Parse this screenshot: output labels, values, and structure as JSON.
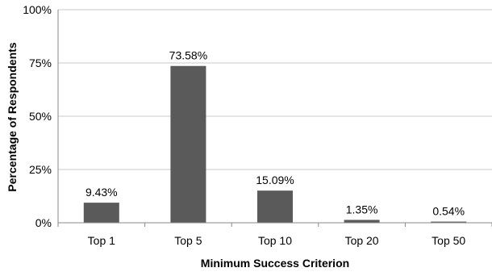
{
  "chart_data": {
    "type": "bar",
    "categories": [
      "Top 1",
      "Top 5",
      "Top 10",
      "Top 20",
      "Top 50"
    ],
    "values": [
      9.43,
      73.58,
      15.09,
      1.35,
      0.54
    ],
    "data_labels": [
      "9.43%",
      "73.58%",
      "15.09%",
      "1.35%",
      "0.54%"
    ],
    "xlabel": "Minimum Success Criterion",
    "ylabel": "Percentage of Respondents",
    "ylim": [
      0,
      100
    ],
    "yticks": [
      0,
      25,
      50,
      75,
      100
    ],
    "ytick_labels": [
      "0%",
      "25%",
      "50%",
      "75%",
      "100%"
    ],
    "grid": true,
    "legend": "none",
    "colors": {
      "bar": "#5a5a5a",
      "grid": "#c8c8c8",
      "axis": "#888888"
    }
  }
}
